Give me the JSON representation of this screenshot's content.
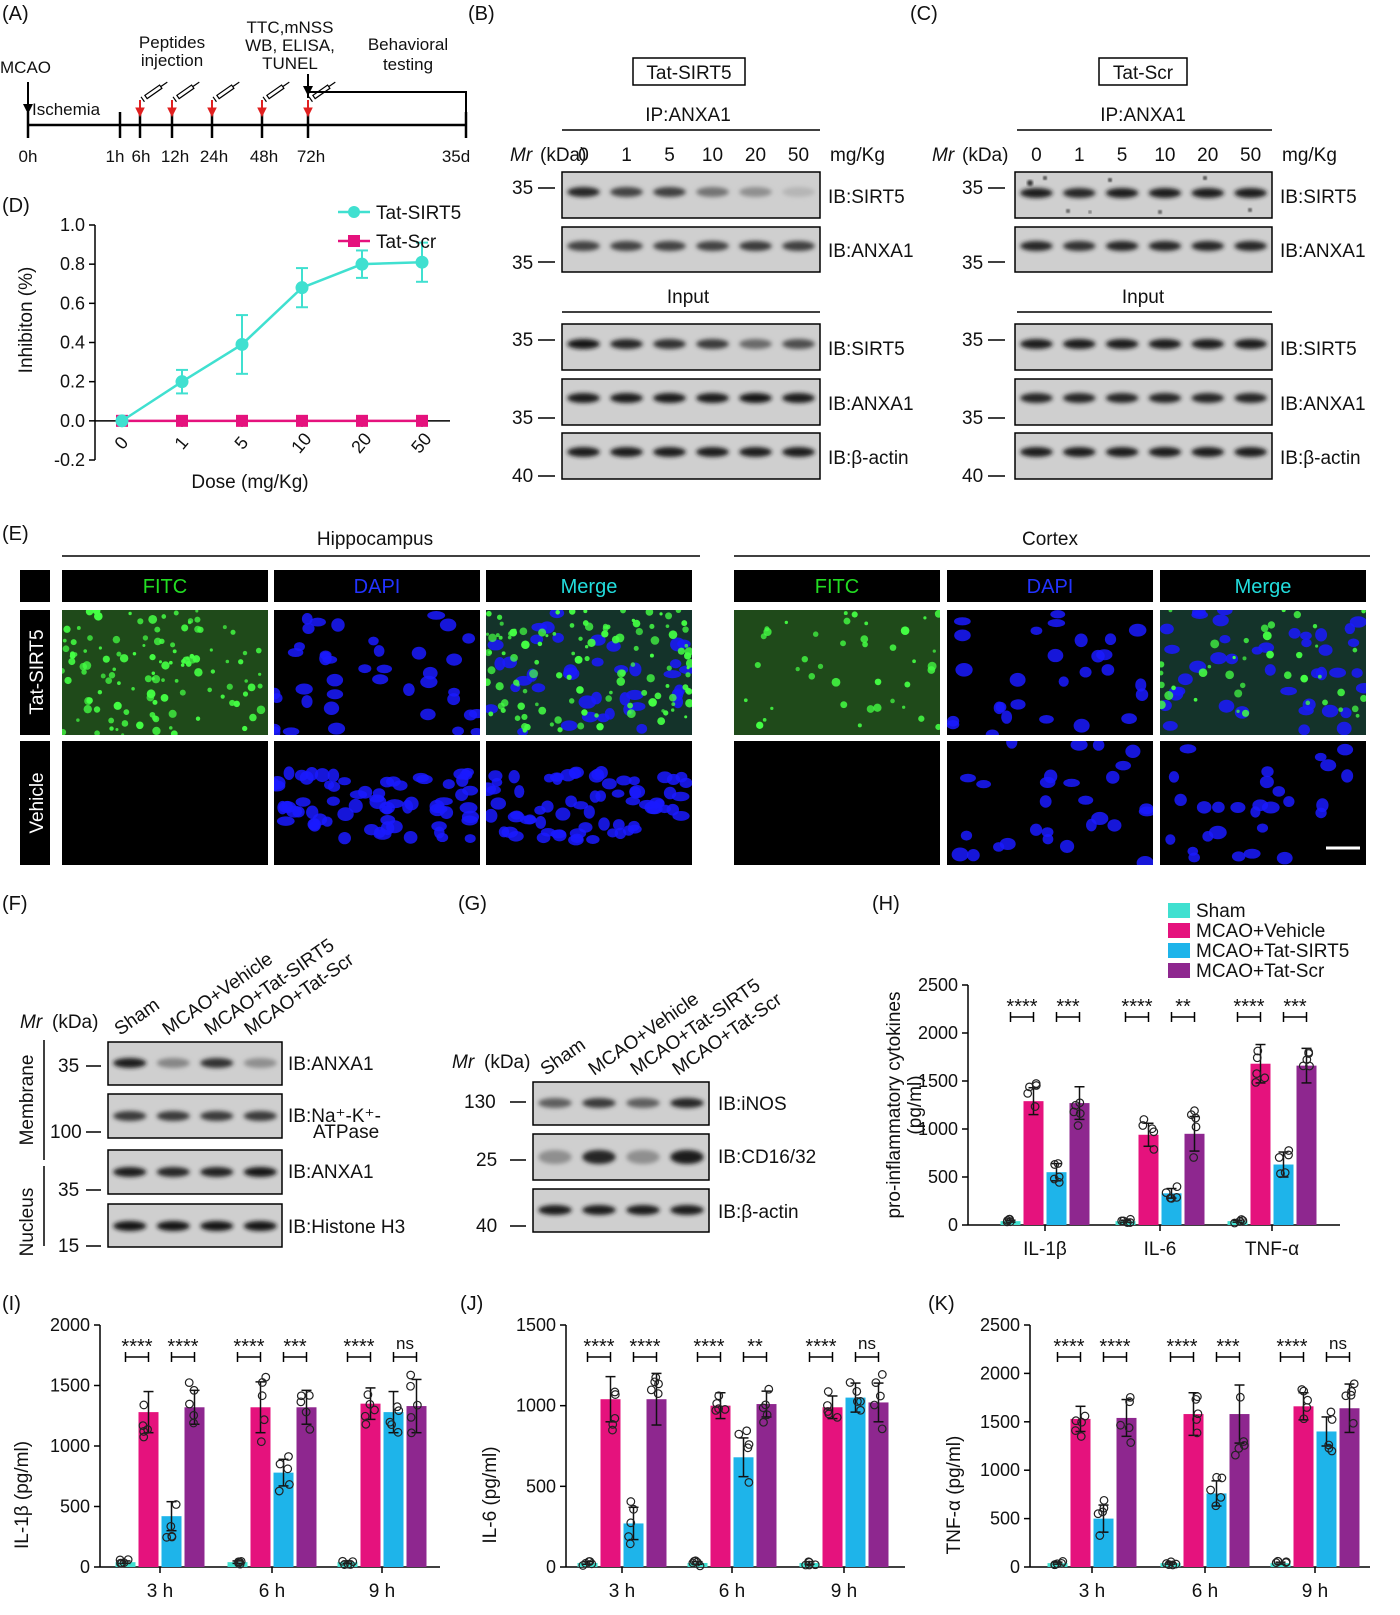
{
  "panel_letters": [
    "(A)",
    "(B)",
    "(C)",
    "(D)",
    "(E)",
    "(F)",
    "(G)",
    "(H)",
    "(I)",
    "(J)",
    "(K)"
  ],
  "panelA": {
    "mcao": "MCAO",
    "ischemia": "Ischemia",
    "peptides": [
      "Peptides",
      "injection"
    ],
    "ttc": [
      "TTC,mNSS",
      "WB, ELISA,",
      "TUNEL"
    ],
    "behav": [
      "Behavioral",
      "testing"
    ],
    "times": [
      "0h",
      "1h",
      "6h",
      "12h",
      "24h",
      "48h",
      "72h",
      "35d"
    ]
  },
  "blot": {
    "mr_label": "Mr",
    "kda_label": "(kDa)",
    "dose_unit": "mg/Kg",
    "doses": [
      "0",
      "1",
      "5",
      "10",
      "20",
      "50"
    ],
    "ip_label": "IP:ANXA1",
    "input_label": "Input",
    "B_title": "Tat-SIRT5",
    "C_title": "Tat-Scr",
    "ib_sirt5": "IB:SIRT5",
    "ib_anxa1": "IB:ANXA1",
    "ib_bactin": "IB:β-actin",
    "mw_35": "35",
    "mw_40": "40"
  },
  "panelE": {
    "hippocampus": "Hippocampus",
    "cortex": "Cortex",
    "channels": [
      "FITC",
      "DAPI",
      "Merge"
    ],
    "rows": [
      "Tat-SIRT5",
      "Vehicle"
    ],
    "colors": {
      "fitc": "#22dd22",
      "dapi": "#2233ff",
      "merge": "#22dddd"
    }
  },
  "panelF": {
    "lanes": [
      "Sham",
      "MCAO+Vehicle",
      "MCAO+Tat-SIRT5",
      "MCAO+Tat-Scr"
    ],
    "membrane": "Membrane",
    "nucleus": "Nucleus",
    "ib": [
      "IB:ANXA1",
      "IB:Na⁺-K⁺-",
      "ATPase",
      "IB:ANXA1",
      "IB:Histone H3"
    ],
    "mw": [
      "35",
      "100",
      "35",
      "15"
    ]
  },
  "panelG": {
    "lanes": [
      "Sham",
      "MCAO+Vehicle",
      "MCAO+Tat-SIRT5",
      "MCAO+Tat-Scr"
    ],
    "ib": [
      "IB:iNOS",
      "IB:CD16/32",
      "IB:β-actin"
    ],
    "mw": [
      "130",
      "25",
      "40"
    ]
  },
  "legend": [
    "Sham",
    "MCAO+Vehicle",
    "MCAO+Tat-SIRT5",
    "MCAO+Tat-Scr"
  ],
  "colors": {
    "sham": "#40e0d0",
    "vehicle": "#e5127d",
    "sirt5": "#1eb4ea",
    "scr": "#8e278f",
    "lineD": "#40e0d0",
    "scrD": "#e5127d"
  },
  "chart_data": [
    {
      "id": "D",
      "type": "line",
      "xlabel": "Dose (mg/Kg)",
      "ylabel": "Inhibiton (%)",
      "categories": [
        "0",
        "1",
        "5",
        "10",
        "20",
        "50"
      ],
      "ylim": [
        -0.2,
        1.0
      ],
      "yticks": [
        "-0.2",
        "0.0",
        "0.2",
        "0.4",
        "0.6",
        "0.8",
        "1.0"
      ],
      "series": [
        {
          "name": "Tat-SIRT5",
          "values": [
            0,
            0.2,
            0.39,
            0.68,
            0.8,
            0.81
          ],
          "err": [
            0,
            0.06,
            0.15,
            0.1,
            0.07,
            0.1
          ]
        },
        {
          "name": "Tat-Scr",
          "values": [
            0,
            0,
            0,
            0,
            0,
            0
          ],
          "err": [
            0,
            0,
            0,
            0,
            0,
            0
          ]
        }
      ]
    },
    {
      "id": "H",
      "type": "bar",
      "ylabel": [
        "pro-inflammatory cytokines",
        "(pg/ml)"
      ],
      "categories": [
        "IL-1β",
        "IL-6",
        "TNF-α"
      ],
      "ylim": [
        0,
        2500
      ],
      "yticks": [
        "0",
        "500",
        "1000",
        "1500",
        "2000",
        "2500"
      ],
      "series": [
        {
          "name": "Sham",
          "values": [
            40,
            40,
            40
          ],
          "err": [
            10,
            10,
            10
          ]
        },
        {
          "name": "MCAO+Vehicle",
          "values": [
            1290,
            940,
            1680
          ],
          "err": [
            140,
            120,
            200
          ]
        },
        {
          "name": "MCAO+Tat-SIRT5",
          "values": [
            550,
            330,
            630
          ],
          "err": [
            90,
            50,
            130
          ]
        },
        {
          "name": "MCAO+Tat-Scr",
          "values": [
            1270,
            950,
            1660
          ],
          "err": [
            170,
            180,
            180
          ]
        }
      ],
      "sig": [
        [
          "****",
          "***"
        ],
        [
          "****",
          "**"
        ],
        [
          "****",
          "***"
        ]
      ]
    },
    {
      "id": "I",
      "type": "bar",
      "ylabel": "IL-1β (pg/ml)",
      "categories": [
        "3 h",
        "6 h",
        "9 h"
      ],
      "ylim": [
        0,
        2000
      ],
      "yticks": [
        "0",
        "500",
        "1000",
        "1500",
        "2000"
      ],
      "series": [
        {
          "name": "Sham",
          "values": [
            40,
            40,
            40
          ],
          "err": [
            10,
            10,
            10
          ]
        },
        {
          "name": "MCAO+Vehicle",
          "values": [
            1280,
            1320,
            1350
          ],
          "err": [
            170,
            210,
            130
          ]
        },
        {
          "name": "MCAO+Tat-SIRT5",
          "values": [
            420,
            780,
            1280
          ],
          "err": [
            120,
            110,
            170
          ]
        },
        {
          "name": "MCAO+Tat-Scr",
          "values": [
            1320,
            1320,
            1330
          ],
          "err": [
            140,
            140,
            220
          ]
        }
      ],
      "sig": [
        [
          "****",
          "****"
        ],
        [
          "****",
          "***"
        ],
        [
          "****",
          "ns"
        ]
      ]
    },
    {
      "id": "J",
      "type": "bar",
      "ylabel": "IL-6 (pg/ml)",
      "categories": [
        "3 h",
        "6 h",
        "9 h"
      ],
      "ylim": [
        0,
        1500
      ],
      "yticks": [
        "0",
        "500",
        "1000",
        "1500"
      ],
      "series": [
        {
          "name": "Sham",
          "values": [
            25,
            25,
            25
          ],
          "err": [
            8,
            8,
            8
          ]
        },
        {
          "name": "MCAO+Vehicle",
          "values": [
            1040,
            1000,
            990
          ],
          "err": [
            140,
            80,
            70
          ]
        },
        {
          "name": "MCAO+Tat-SIRT5",
          "values": [
            270,
            680,
            1050
          ],
          "err": [
            100,
            120,
            90
          ]
        },
        {
          "name": "MCAO+Tat-Scr",
          "values": [
            1040,
            1010,
            1020
          ],
          "err": [
            160,
            80,
            120
          ]
        }
      ],
      "sig": [
        [
          "****",
          "****"
        ],
        [
          "****",
          "**"
        ],
        [
          "****",
          "ns"
        ]
      ]
    },
    {
      "id": "K",
      "type": "bar",
      "ylabel": "TNF-α (pg/ml)",
      "categories": [
        "3 h",
        "6 h",
        "9 h"
      ],
      "ylim": [
        0,
        2500
      ],
      "yticks": [
        "0",
        "500",
        "1000",
        "1500",
        "2000",
        "2500"
      ],
      "series": [
        {
          "name": "Sham",
          "values": [
            40,
            40,
            40
          ],
          "err": [
            10,
            10,
            10
          ]
        },
        {
          "name": "MCAO+Vehicle",
          "values": [
            1530,
            1580,
            1660
          ],
          "err": [
            130,
            220,
            140
          ]
        },
        {
          "name": "MCAO+Tat-SIRT5",
          "values": [
            500,
            760,
            1400
          ],
          "err": [
            140,
            130,
            150
          ]
        },
        {
          "name": "MCAO+Tat-Scr",
          "values": [
            1540,
            1580,
            1640
          ],
          "err": [
            190,
            300,
            250
          ]
        }
      ],
      "sig": [
        [
          "****",
          "****"
        ],
        [
          "****",
          "***"
        ],
        [
          "****",
          "ns"
        ]
      ]
    }
  ]
}
